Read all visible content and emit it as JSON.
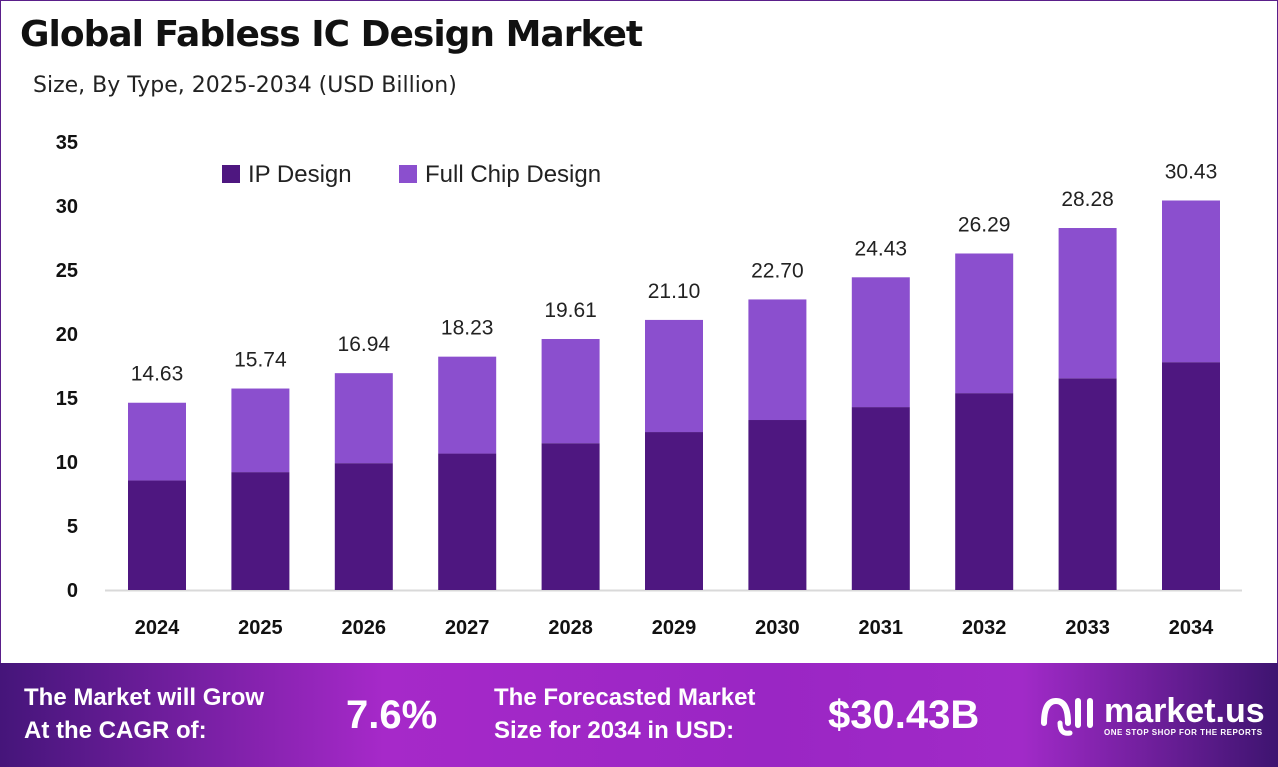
{
  "title": "Global Fabless IC Design Market",
  "subtitle": "Size, By Type, 2025-2034 (USD Billion)",
  "colors": {
    "ip_design": "#4e1780",
    "full_chip_design": "#8b4fce"
  },
  "chart_data": {
    "type": "bar",
    "stacked": true,
    "categories": [
      "2024",
      "2025",
      "2026",
      "2027",
      "2028",
      "2029",
      "2030",
      "2031",
      "2032",
      "2033",
      "2034"
    ],
    "series": [
      {
        "name": "IP Design",
        "values": [
          8.56,
          9.21,
          9.91,
          10.66,
          11.47,
          12.34,
          13.28,
          14.29,
          15.38,
          16.54,
          17.8
        ]
      },
      {
        "name": "Full Chip Design",
        "values": [
          6.07,
          6.53,
          7.03,
          7.57,
          8.14,
          8.76,
          9.42,
          10.14,
          10.91,
          11.74,
          12.63
        ]
      }
    ],
    "totals": [
      "14.63",
      "15.74",
      "16.94",
      "18.23",
      "19.61",
      "21.10",
      "22.70",
      "24.43",
      "26.29",
      "28.28",
      "30.43"
    ],
    "ylim": [
      0,
      35
    ],
    "yticks": [
      "0",
      "5",
      "10",
      "15",
      "20",
      "25",
      "30",
      "35"
    ],
    "grid": false,
    "legend": "top-left"
  },
  "footer": {
    "cagr_label_1": "The Market will Grow",
    "cagr_label_2": "At the CAGR of:",
    "cagr_value": "7.6%",
    "forecast_label_1": "The Forecasted Market",
    "forecast_label_2": "Size for 2034 in USD:",
    "forecast_value": "$30.43B",
    "logo_name": "market.us",
    "logo_tagline": "ONE STOP SHOP FOR THE REPORTS"
  }
}
